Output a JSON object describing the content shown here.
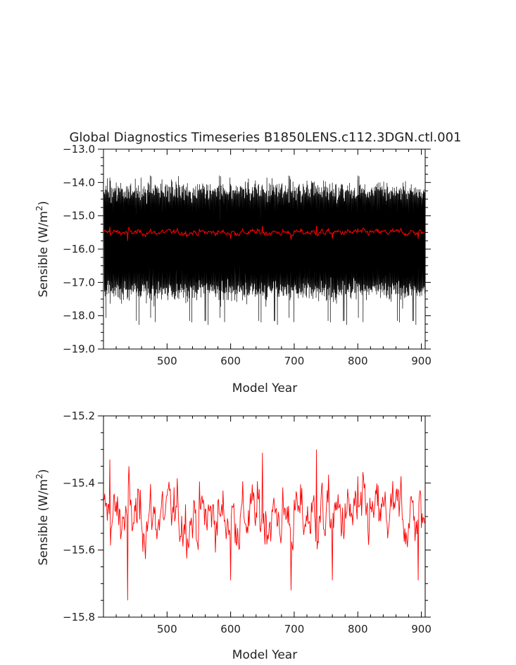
{
  "chart_data": [
    {
      "type": "line",
      "title": "Global Diagnostics Timeseries B1850LENS.c112.3DGN.ctl.001",
      "xlabel": "Model Year",
      "ylabel": "Sensible (W/m²)",
      "ylabel_main": "Sensible (W/m",
      "ylabel_sup": "2",
      "ylabel_end": ")",
      "xlim": [
        400,
        906
      ],
      "ylim": [
        -19.0,
        -13.0
      ],
      "x_ticks": [
        500,
        600,
        700,
        800,
        900
      ],
      "x_tick_labels": [
        "500",
        "600",
        "700",
        "800",
        "900"
      ],
      "y_ticks": [
        -19.0,
        -18.0,
        -17.0,
        -16.0,
        -15.0,
        -14.0,
        -13.0
      ],
      "y_tick_labels": [
        "−19.0",
        "−18.0",
        "−17.0",
        "−16.0",
        "−15.0",
        "−14.0",
        "−13.0"
      ],
      "grid": false,
      "series": [
        {
          "role": "monthly",
          "color": "#000000",
          "mean": -15.75,
          "amplitude_high": -14.2,
          "amplitude_low": -17.5,
          "extreme_min": -18.3,
          "extreme_max": -13.75
        },
        {
          "role": "annual",
          "color": "#ff0000",
          "mean": -15.5,
          "range": [
            -15.65,
            -15.35
          ]
        }
      ]
    },
    {
      "type": "line",
      "title": "",
      "xlabel": "Model Year",
      "ylabel": "Sensible (W/m²)",
      "ylabel_main": "Sensible (W/m",
      "ylabel_sup": "2",
      "ylabel_end": ")",
      "xlim": [
        400,
        906
      ],
      "ylim": [
        -15.8,
        -15.2
      ],
      "x_ticks": [
        500,
        600,
        700,
        800,
        900
      ],
      "x_tick_labels": [
        "500",
        "600",
        "700",
        "800",
        "900"
      ],
      "y_ticks": [
        -15.8,
        -15.6,
        -15.4,
        -15.2
      ],
      "y_tick_labels": [
        "−15.8",
        "−15.6",
        "−15.4",
        "−15.2"
      ],
      "grid": false,
      "series": [
        {
          "role": "annual",
          "color": "#ff0000",
          "mean": -15.5,
          "x_start": 401,
          "x_end": 905,
          "key_points": [
            {
              "x": 401,
              "y": -15.45
            },
            {
              "x": 410,
              "y": -15.33
            },
            {
              "x": 438,
              "y": -15.75
            },
            {
              "x": 440,
              "y": -15.35
            },
            {
              "x": 600,
              "y": -15.69
            },
            {
              "x": 650,
              "y": -15.31
            },
            {
              "x": 695,
              "y": -15.72
            },
            {
              "x": 735,
              "y": -15.3
            },
            {
              "x": 760,
              "y": -15.69
            },
            {
              "x": 800,
              "y": -15.38
            },
            {
              "x": 868,
              "y": -15.38
            },
            {
              "x": 895,
              "y": -15.69
            },
            {
              "x": 905,
              "y": -15.52
            }
          ]
        }
      ]
    }
  ]
}
